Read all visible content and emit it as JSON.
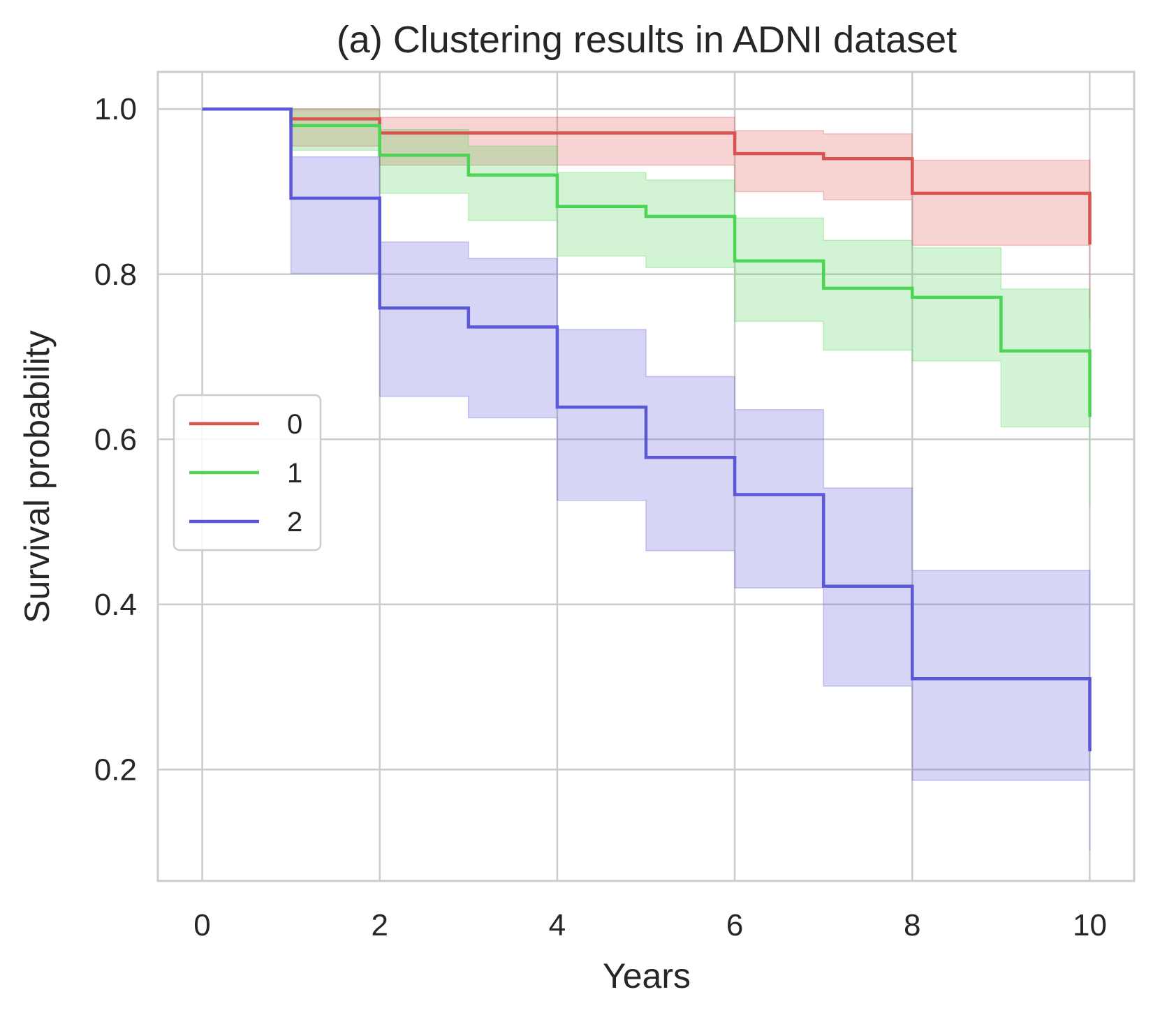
{
  "chart_data": {
    "type": "line",
    "subtype": "kaplan-meier step plot with confidence bands",
    "title": "(a) Clustering results in ADNI dataset",
    "xlabel": "Years",
    "ylabel": "Survival probability",
    "xlim": [
      -0.5,
      10.5
    ],
    "ylim": [
      0.065,
      1.045
    ],
    "xticks": [
      0,
      2,
      4,
      6,
      8,
      10
    ],
    "xtick_labels": [
      "0",
      "2",
      "4",
      "6",
      "8",
      "10"
    ],
    "yticks": [
      0.2,
      0.4,
      0.6,
      0.8,
      1.0
    ],
    "ytick_labels": [
      "0.2",
      "0.4",
      "0.6",
      "0.8",
      "1.0"
    ],
    "grid": true,
    "legend_position": "center-left",
    "series": [
      {
        "name": "0",
        "color": "#d9534f",
        "x": [
          0,
          1,
          2,
          6,
          7,
          8,
          10
        ],
        "y": [
          1.0,
          0.988,
          0.971,
          0.946,
          0.94,
          0.898,
          0.836
        ],
        "ci_lower": [
          1.0,
          0.955,
          0.932,
          0.9,
          0.89,
          0.835,
          0.745
        ],
        "ci_upper": [
          1.0,
          1.0,
          0.99,
          0.974,
          0.97,
          0.938,
          0.9
        ]
      },
      {
        "name": "1",
        "color": "#4cd454",
        "x": [
          0,
          1,
          2,
          3,
          4,
          5,
          6,
          7,
          8,
          9,
          10
        ],
        "y": [
          1.0,
          0.98,
          0.944,
          0.92,
          0.882,
          0.87,
          0.816,
          0.783,
          0.772,
          0.707,
          0.627
        ],
        "ci_lower": [
          1.0,
          0.95,
          0.898,
          0.865,
          0.822,
          0.808,
          0.743,
          0.708,
          0.695,
          0.615,
          0.518
        ],
        "ci_upper": [
          1.0,
          0.998,
          0.975,
          0.955,
          0.923,
          0.914,
          0.868,
          0.841,
          0.832,
          0.782,
          0.72
        ]
      },
      {
        "name": "2",
        "color": "#5b57d9",
        "x": [
          0,
          1,
          2,
          3,
          4,
          5,
          6,
          7,
          8,
          10
        ],
        "y": [
          1.0,
          0.892,
          0.759,
          0.736,
          0.639,
          0.578,
          0.533,
          0.422,
          0.31,
          0.222
        ],
        "ci_lower": [
          1.0,
          0.801,
          0.652,
          0.626,
          0.526,
          0.465,
          0.42,
          0.301,
          0.187,
          0.102
        ],
        "ci_upper": [
          1.0,
          0.942,
          0.839,
          0.819,
          0.733,
          0.676,
          0.636,
          0.541,
          0.441,
          0.36
        ]
      }
    ]
  }
}
